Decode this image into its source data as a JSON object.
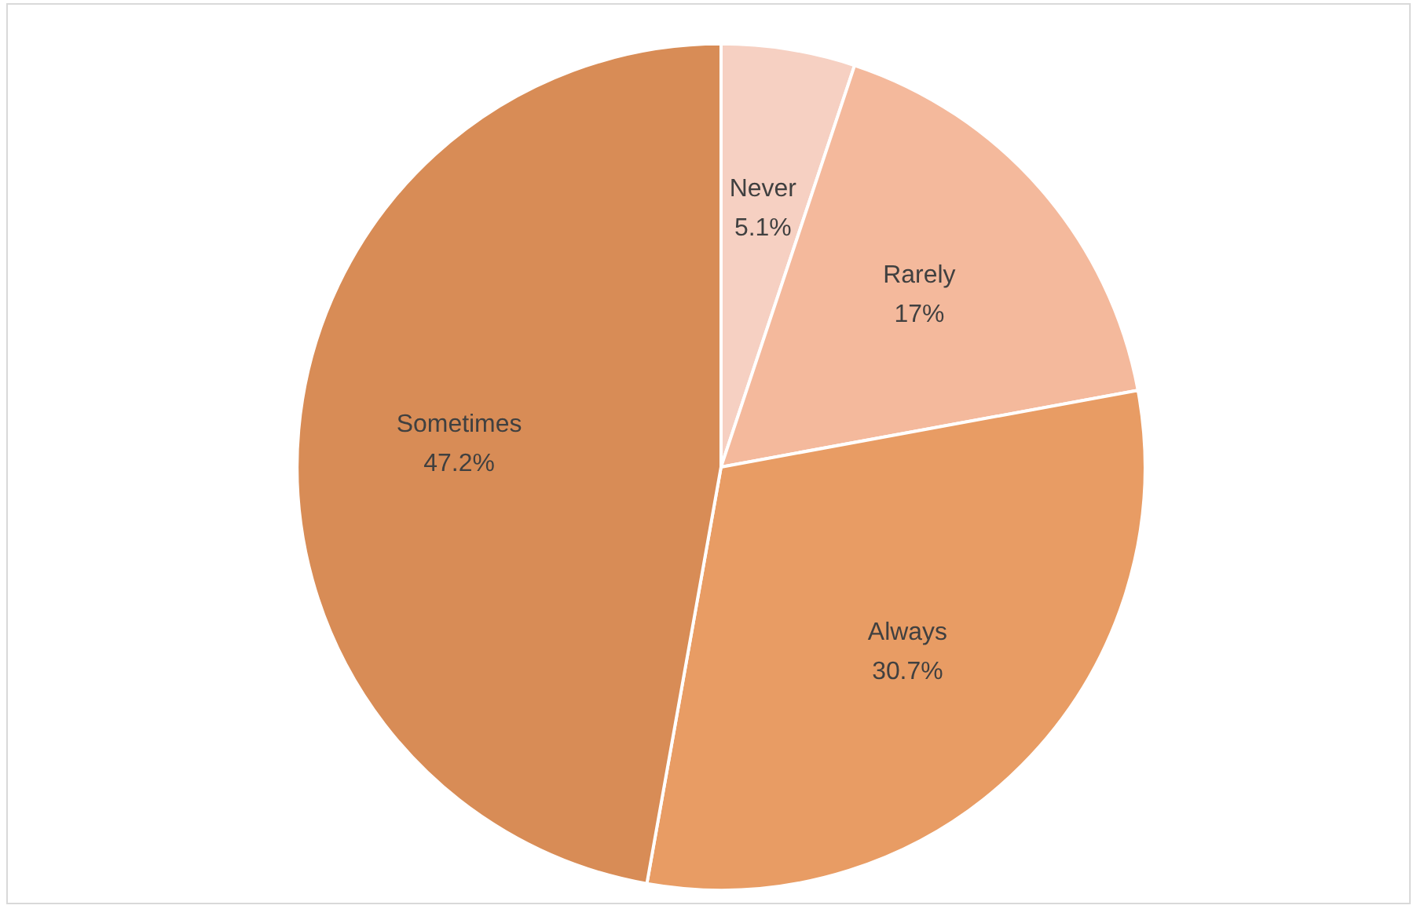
{
  "chart_data": {
    "type": "pie",
    "categories": [
      "Never",
      "Rarely",
      "Always",
      "Sometimes"
    ],
    "values": [
      5.1,
      17,
      30.7,
      47.2
    ],
    "value_labels": [
      "5.1%",
      "17%",
      "30.7%",
      "47.2%"
    ],
    "colors": [
      "#f6d0c2",
      "#f4b99c",
      "#e89c64",
      "#d88c56"
    ],
    "legend": false
  }
}
